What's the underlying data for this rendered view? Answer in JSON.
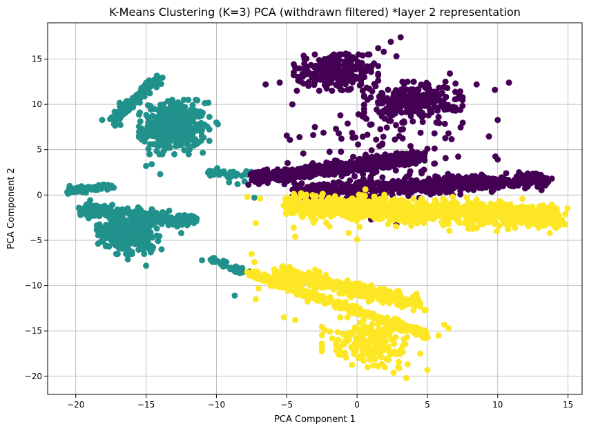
{
  "chart_data": {
    "type": "scatter",
    "title": "K-Means Clustering (K=3) PCA (withdrawn filtered) *layer 2 representation",
    "xlabel": "PCA Component 1",
    "ylabel": "PCA Component 2",
    "xlim": [
      -22,
      16
    ],
    "ylim": [
      -22,
      19
    ],
    "xticks": [
      -20,
      -15,
      -10,
      -5,
      0,
      5,
      10,
      15
    ],
    "yticks": [
      -20,
      -15,
      -10,
      -5,
      0,
      5,
      10,
      15
    ],
    "grid": true,
    "legend": "none",
    "colors": {
      "cluster_0": "#440154",
      "cluster_1": "#21918c",
      "cluster_2": "#fde725"
    },
    "series": [
      {
        "cluster": 0,
        "color": "#440154",
        "regions": [
          {
            "kind": "blob",
            "x_range": [
              -4.5,
              1.5
            ],
            "y_range": [
              11.5,
              15.5
            ],
            "count": 260
          },
          {
            "kind": "blob",
            "x_range": [
              0.5,
              7.5
            ],
            "y_range": [
              8.0,
              12.5
            ],
            "count": 260
          },
          {
            "kind": "band",
            "x_start": -7.5,
            "x_end": 4.5,
            "y_start": 1.8,
            "y_end": 4.2,
            "spread": 0.7,
            "count": 650
          },
          {
            "kind": "band",
            "x_start": -4.5,
            "x_end": 13.5,
            "y_start": 0.3,
            "y_end": 1.7,
            "spread": 0.8,
            "count": 750
          },
          {
            "kind": "blob",
            "x_range": [
              -5,
              10
            ],
            "y_range": [
              -1,
              12
            ],
            "count": 90
          }
        ],
        "points": [
          [
            -2.3,
            15.0
          ],
          [
            -1.8,
            15.3
          ],
          [
            -0.8,
            15.6
          ],
          [
            -0.3,
            15.2
          ],
          [
            0.4,
            15.4
          ],
          [
            1.5,
            16.2
          ],
          [
            1.9,
            15.8
          ],
          [
            2.4,
            16.9
          ],
          [
            3.1,
            17.4
          ],
          [
            2.8,
            15.3
          ],
          [
            -6.5,
            12.2
          ],
          [
            -5.5,
            12.4
          ],
          [
            -4.6,
            10.0
          ],
          [
            -4.0,
            12.5
          ],
          [
            -3.0,
            7.5
          ],
          [
            -1.5,
            7.3
          ],
          [
            -1.3,
            6.8
          ],
          [
            0.1,
            8.9
          ],
          [
            3.0,
            6.5
          ],
          [
            6.5,
            6.8
          ],
          [
            7.0,
            9.3
          ],
          [
            8.5,
            12.2
          ],
          [
            10.8,
            12.4
          ],
          [
            6.6,
            13.4
          ],
          [
            7.0,
            12.3
          ],
          [
            9.8,
            11.6
          ],
          [
            5.8,
            8.6
          ],
          [
            5.0,
            5.1
          ],
          [
            3.8,
            5.4
          ],
          [
            2.8,
            -3.2
          ],
          [
            1.0,
            -2.7
          ],
          [
            0.3,
            -1.6
          ],
          [
            -0.5,
            -2.4
          ],
          [
            -3.0,
            -0.3
          ],
          [
            -4.1,
            -0.4
          ],
          [
            13.5,
            1.3
          ],
          [
            12.3,
            1.9
          ],
          [
            10.6,
            2.4
          ]
        ]
      },
      {
        "cluster": 1,
        "color": "#21918c",
        "regions": [
          {
            "kind": "band",
            "x_start": -17.5,
            "x_end": -14.2,
            "y_start": 8.0,
            "y_end": 12.8,
            "spread": 0.45,
            "count": 120
          },
          {
            "kind": "blob",
            "x_range": [
              -15.5,
              -10.5
            ],
            "y_range": [
              4.5,
              10.5
            ],
            "count": 380
          },
          {
            "kind": "band",
            "x_start": -20.5,
            "x_end": -17.5,
            "y_start": 0.4,
            "y_end": 1.0,
            "spread": 0.35,
            "count": 80
          },
          {
            "kind": "band",
            "x_start": -19.5,
            "x_end": -11.5,
            "y_start": -1.5,
            "y_end": -3.0,
            "spread": 0.7,
            "count": 230
          },
          {
            "kind": "blob",
            "x_range": [
              -18.5,
              -14.0
            ],
            "y_range": [
              -6.5,
              -2.0
            ],
            "count": 300
          },
          {
            "kind": "band",
            "x_start": -10.5,
            "x_end": -7.5,
            "y_start": 2.5,
            "y_end": 2.2,
            "spread": 0.4,
            "count": 35
          },
          {
            "kind": "band",
            "x_start": -10.5,
            "x_end": -8.0,
            "y_start": -7.0,
            "y_end": -8.6,
            "spread": 0.2,
            "count": 30
          }
        ],
        "points": [
          [
            -14.0,
            2.3
          ],
          [
            -15.0,
            3.2
          ],
          [
            -14.6,
            3.4
          ],
          [
            -10.0,
            8.0
          ],
          [
            -9.9,
            7.8
          ],
          [
            -15.0,
            -7.8
          ],
          [
            -16.3,
            -7.1
          ],
          [
            -13.9,
            -6.0
          ],
          [
            -12.5,
            -4.2
          ],
          [
            -8.7,
            -11.1
          ],
          [
            -10.3,
            -7.1
          ],
          [
            -9.3,
            -7.4
          ],
          [
            -10.2,
            2.5
          ],
          [
            -9.0,
            2.4
          ],
          [
            -8.0,
            1.5
          ],
          [
            -8.5,
            1.2
          ],
          [
            -7.3,
            -0.3
          ],
          [
            -9.1,
            1.4
          ],
          [
            -19.5,
            0.3
          ],
          [
            -20.3,
            0.6
          ]
        ]
      },
      {
        "cluster": 2,
        "color": "#fde725",
        "regions": [
          {
            "kind": "band",
            "x_start": -5.0,
            "x_end": 14.5,
            "y_start": -1.2,
            "y_end": -2.4,
            "spread": 1.3,
            "count": 1100
          },
          {
            "kind": "band",
            "x_start": -7.5,
            "x_end": 5.0,
            "y_start": -8.7,
            "y_end": -15.5,
            "spread": 0.35,
            "count": 430
          },
          {
            "kind": "band",
            "x_start": -5.5,
            "x_end": 4.5,
            "y_start": -8.5,
            "y_end": -12.0,
            "spread": 0.8,
            "count": 330
          },
          {
            "kind": "blob",
            "x_range": [
              -2.5,
              4.5
            ],
            "y_range": [
              -19.0,
              -13.5
            ],
            "count": 200
          }
        ],
        "points": [
          [
            -7.5,
            -6.5
          ],
          [
            -7.3,
            -7.4
          ],
          [
            -7.0,
            -10.3
          ],
          [
            -7.2,
            -11.5
          ],
          [
            -5.2,
            -13.5
          ],
          [
            -4.4,
            -13.8
          ],
          [
            -2.3,
            -14.9
          ],
          [
            2.6,
            -19.6
          ],
          [
            3.5,
            -20.2
          ],
          [
            3.0,
            -19.1
          ],
          [
            5.0,
            -19.3
          ],
          [
            6.2,
            -14.3
          ],
          [
            6.5,
            -14.7
          ],
          [
            5.8,
            -15.5
          ],
          [
            -6.9,
            -0.4
          ],
          [
            -7.8,
            -0.2
          ],
          [
            -7.2,
            -3.1
          ],
          [
            -4.5,
            -3.6
          ],
          [
            -4.4,
            -4.6
          ],
          [
            0.0,
            -4.9
          ],
          [
            -0.6,
            -4.2
          ],
          [
            13.0,
            -2.0
          ],
          [
            13.8,
            -2.8
          ],
          [
            14.8,
            -2.1
          ],
          [
            12.5,
            -3.0
          ],
          [
            6.8,
            -0.2
          ],
          [
            8.5,
            -0.5
          ]
        ]
      }
    ]
  }
}
